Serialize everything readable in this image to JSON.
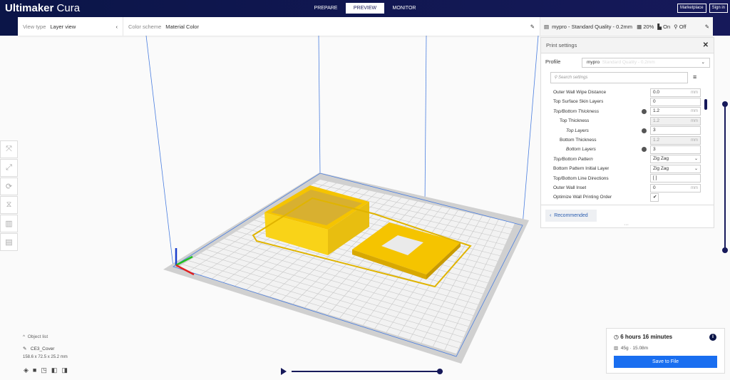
{
  "header": {
    "logo_bold": "Ultimaker",
    "logo_light": "Cura",
    "tabs": [
      {
        "label": "PREPARE"
      },
      {
        "label": "PREVIEW",
        "active": true
      },
      {
        "label": "MONITOR"
      }
    ],
    "marketplace": "Marketplace",
    "signin": "Sign in"
  },
  "toolbar": {
    "view_type_label": "View type",
    "view_type_value": "Layer view",
    "color_scheme_label": "Color scheme",
    "color_scheme_value": "Material Color",
    "printer_profile": "mypro - Standard Quality - 0.2mm",
    "infill": "20%",
    "support": "On",
    "adhesion": "Off"
  },
  "print_settings": {
    "title": "Print settings",
    "profile_label": "Profile",
    "profile_name": "mypro",
    "profile_quality": "Standard Quality - 0.2mm",
    "search_placeholder": "Search settings",
    "recommended": "Recommended",
    "settings": [
      {
        "name": "Outer Wall Wipe Distance",
        "value": "0.0",
        "unit": "mm"
      },
      {
        "name": "Top Surface Skin Layers",
        "value": "0"
      },
      {
        "name": "Top/Bottom Thickness",
        "value": "1.2",
        "unit": "mm",
        "italic": true,
        "info": true
      },
      {
        "name": "Top Thickness",
        "value": "1.2",
        "unit": "mm",
        "indent": 1,
        "disabled": true
      },
      {
        "name": "Top Layers",
        "value": "3",
        "indent": 2,
        "italic": true,
        "info": true
      },
      {
        "name": "Bottom Thickness",
        "value": "1.2",
        "unit": "mm",
        "indent": 1,
        "disabled": true
      },
      {
        "name": "Bottom Layers",
        "value": "3",
        "indent": 2,
        "italic": true,
        "info": true
      },
      {
        "name": "Top/Bottom Pattern",
        "value": "Zig Zag",
        "dropdown": true,
        "italic": true
      },
      {
        "name": "Bottom Pattern Initial Layer",
        "value": "Zig Zag",
        "dropdown": true
      },
      {
        "name": "Top/Bottom Line Directions",
        "value": "[ ]"
      },
      {
        "name": "Outer Wall Inset",
        "value": "0",
        "unit": "mm"
      },
      {
        "name": "Optimize Wall Printing Order",
        "checkbox": true,
        "checked": true
      }
    ]
  },
  "object": {
    "list_label": "Object list",
    "name": "CE3_Cover",
    "dimensions": "158.6 x 72.5 x 25.2 mm"
  },
  "job": {
    "time": "6 hours 16 minutes",
    "material": "45g · 15.08m",
    "save": "Save to File"
  },
  "colors": {
    "header": "#0b1548",
    "accent": "#196ef0",
    "model": "#f9d318"
  }
}
